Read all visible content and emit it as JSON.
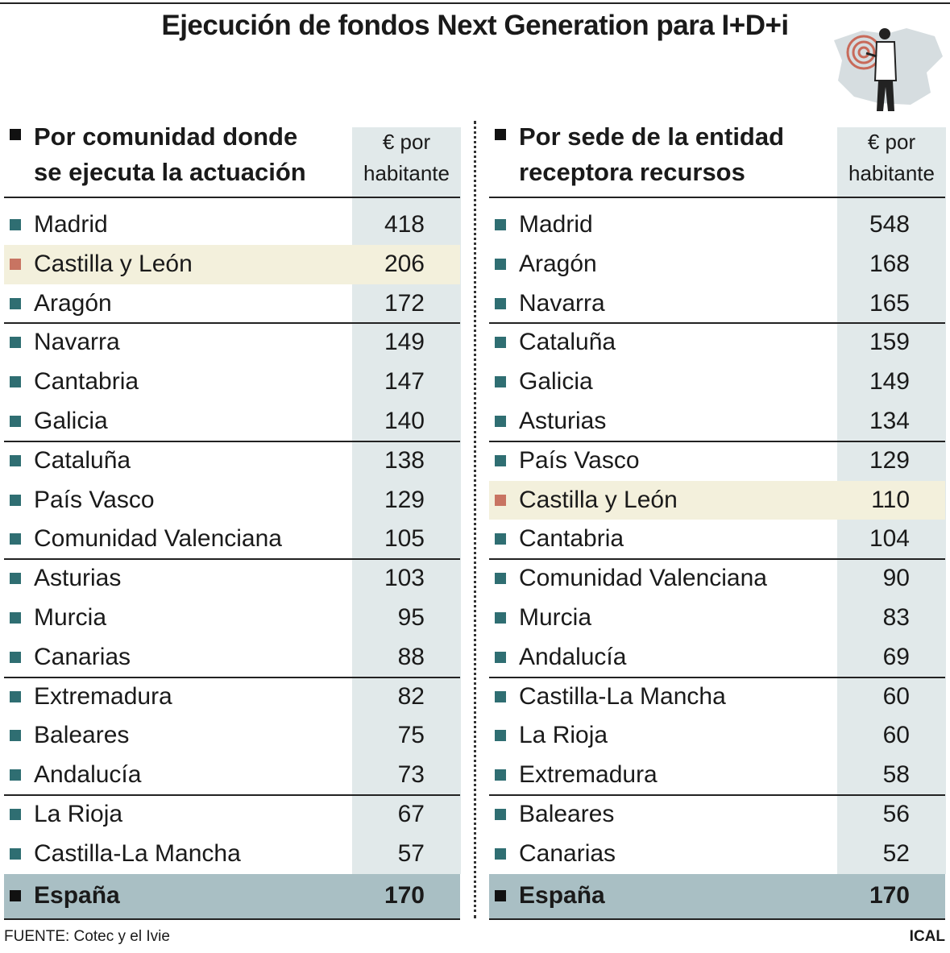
{
  "header": {
    "title": "Ejecución de fondos Next Generation para I+D+i"
  },
  "tables": [
    {
      "heading": [
        "Por comunidad donde",
        "se ejecuta la actuación"
      ],
      "column": [
        "€ por",
        "habitante"
      ],
      "highlight": 1,
      "rows": [
        [
          "Madrid",
          418
        ],
        [
          "Castilla y León",
          206
        ],
        [
          "Aragón",
          172
        ],
        [
          "Navarra",
          149
        ],
        [
          "Cantabria",
          147
        ],
        [
          "Galicia",
          140
        ],
        [
          "Cataluña",
          138
        ],
        [
          "País Vasco",
          129
        ],
        [
          "Comunidad Valenciana",
          105
        ],
        [
          "Asturias",
          103
        ],
        [
          "Murcia",
          95
        ],
        [
          "Canarias",
          88
        ],
        [
          "Extremadura",
          82
        ],
        [
          "Baleares",
          75
        ],
        [
          "Andalucía",
          73
        ],
        [
          "La Rioja",
          67
        ],
        [
          "Castilla-La Mancha",
          57
        ]
      ],
      "total": [
        "España",
        170
      ]
    },
    {
      "heading": [
        "Por sede de la entidad",
        "receptora recursos"
      ],
      "column": [
        "€ por",
        "habitante"
      ],
      "highlight": 7,
      "rows": [
        [
          "Madrid",
          548
        ],
        [
          "Aragón",
          168
        ],
        [
          "Navarra",
          165
        ],
        [
          "Cataluña",
          159
        ],
        [
          "Galicia",
          149
        ],
        [
          "Asturias",
          134
        ],
        [
          "País Vasco",
          129
        ],
        [
          "Castilla y León",
          110
        ],
        [
          "Cantabria",
          104
        ],
        [
          "Comunidad Valenciana",
          90
        ],
        [
          "Murcia",
          83
        ],
        [
          "Andalucía",
          69
        ],
        [
          "Castilla-La Mancha",
          60
        ],
        [
          "La Rioja",
          60
        ],
        [
          "Extremadura",
          58
        ],
        [
          "Baleares",
          56
        ],
        [
          "Canarias",
          52
        ]
      ],
      "total": [
        "España",
        170
      ]
    }
  ],
  "footer": {
    "source": "FUENTE: Cotec y el Ivie",
    "credit": "ICAL"
  }
}
